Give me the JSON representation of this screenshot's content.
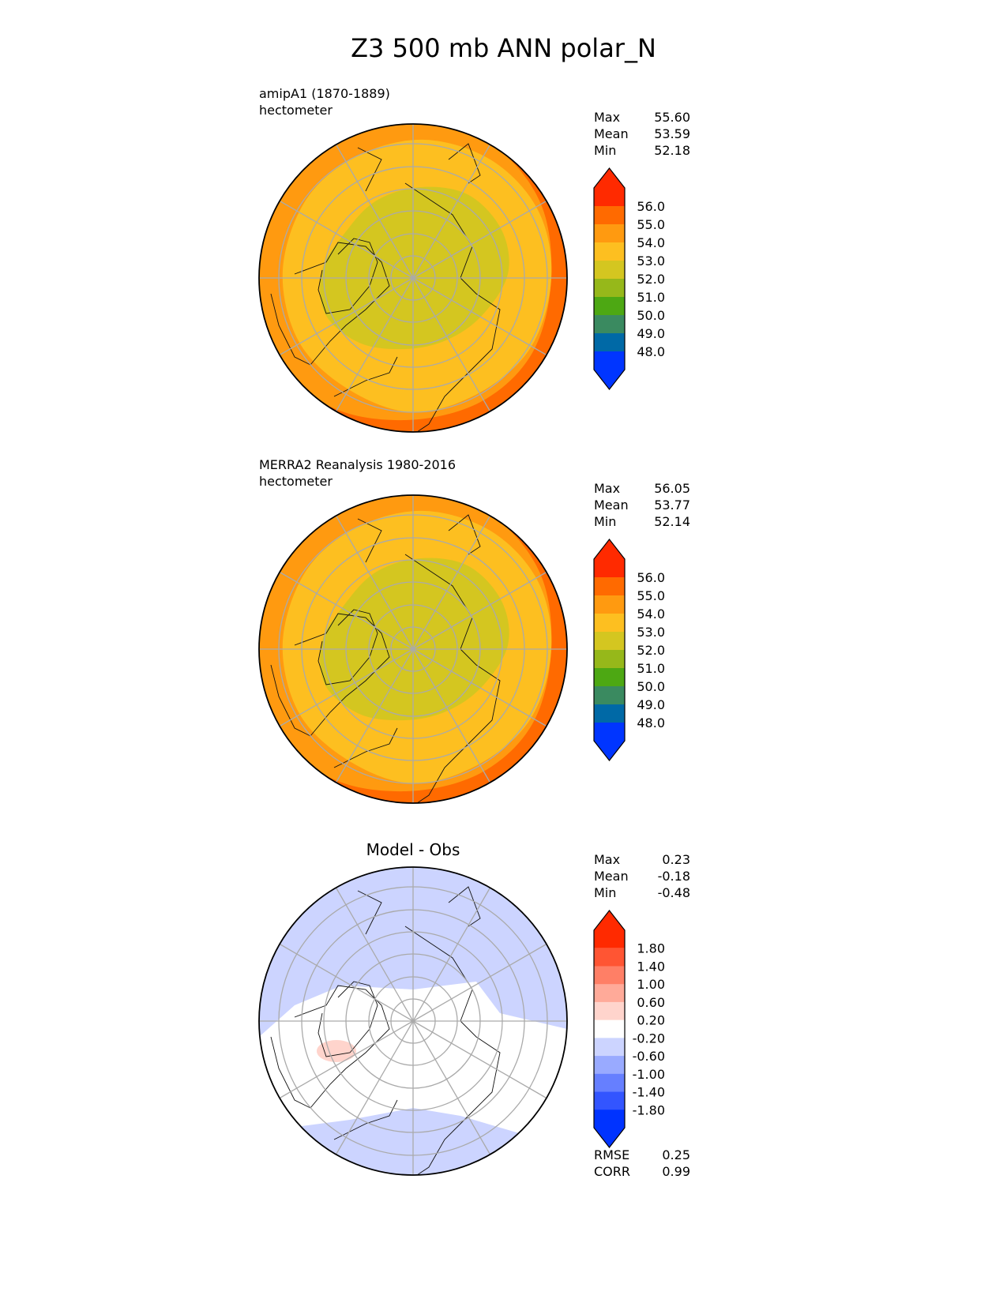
{
  "title": "Z3 500 mb ANN polar_N",
  "panels": [
    {
      "label1": "amipA1 (1870-1889)",
      "label2": "hectometer",
      "stats": [
        {
          "k": "Max",
          "v": "55.60"
        },
        {
          "k": "Mean",
          "v": "53.59"
        },
        {
          "k": "Min",
          "v": "52.18"
        }
      ]
    },
    {
      "label1": "MERRA2 Reanalysis 1980-2016",
      "label2": "hectometer",
      "stats": [
        {
          "k": "Max",
          "v": "56.05"
        },
        {
          "k": "Mean",
          "v": "53.77"
        },
        {
          "k": "Min",
          "v": "52.14"
        }
      ]
    },
    {
      "title": "Model - Obs",
      "stats": [
        {
          "k": "Max",
          "v": "0.23"
        },
        {
          "k": "Mean",
          "v": "-0.18"
        },
        {
          "k": "Min",
          "v": "-0.48"
        }
      ],
      "extra": [
        {
          "k": "RMSE",
          "v": "0.25"
        },
        {
          "k": "CORR",
          "v": "0.99"
        }
      ]
    }
  ],
  "chart_data": {
    "type": "heatmap",
    "projection": "north polar stereographic",
    "title": "Z3 500 mb ANN polar_N",
    "units": "hectometer",
    "colorbars": [
      {
        "ticks": [
          "56.0",
          "55.0",
          "54.0",
          "53.0",
          "52.0",
          "51.0",
          "50.0",
          "49.0",
          "48.0"
        ],
        "colors": [
          "#ff2a00",
          "#ff6a00",
          "#ff9a10",
          "#fdbf20",
          "#d4c620",
          "#96b81a",
          "#4da813",
          "#3a8a60",
          "#0069a6",
          "#0035ff"
        ]
      },
      {
        "ticks": [
          "1.80",
          "1.40",
          "1.00",
          "0.60",
          "0.20",
          "-0.20",
          "-0.60",
          "-1.00",
          "-1.40",
          "-1.80"
        ],
        "colors": [
          "#ff2a00",
          "#ff5533",
          "#ff7f66",
          "#ffaa99",
          "#ffd4cc",
          "#ffffff",
          "#ccd4ff",
          "#99aaff",
          "#667fff",
          "#3355ff",
          "#0033ff"
        ]
      }
    ],
    "grid": true
  }
}
